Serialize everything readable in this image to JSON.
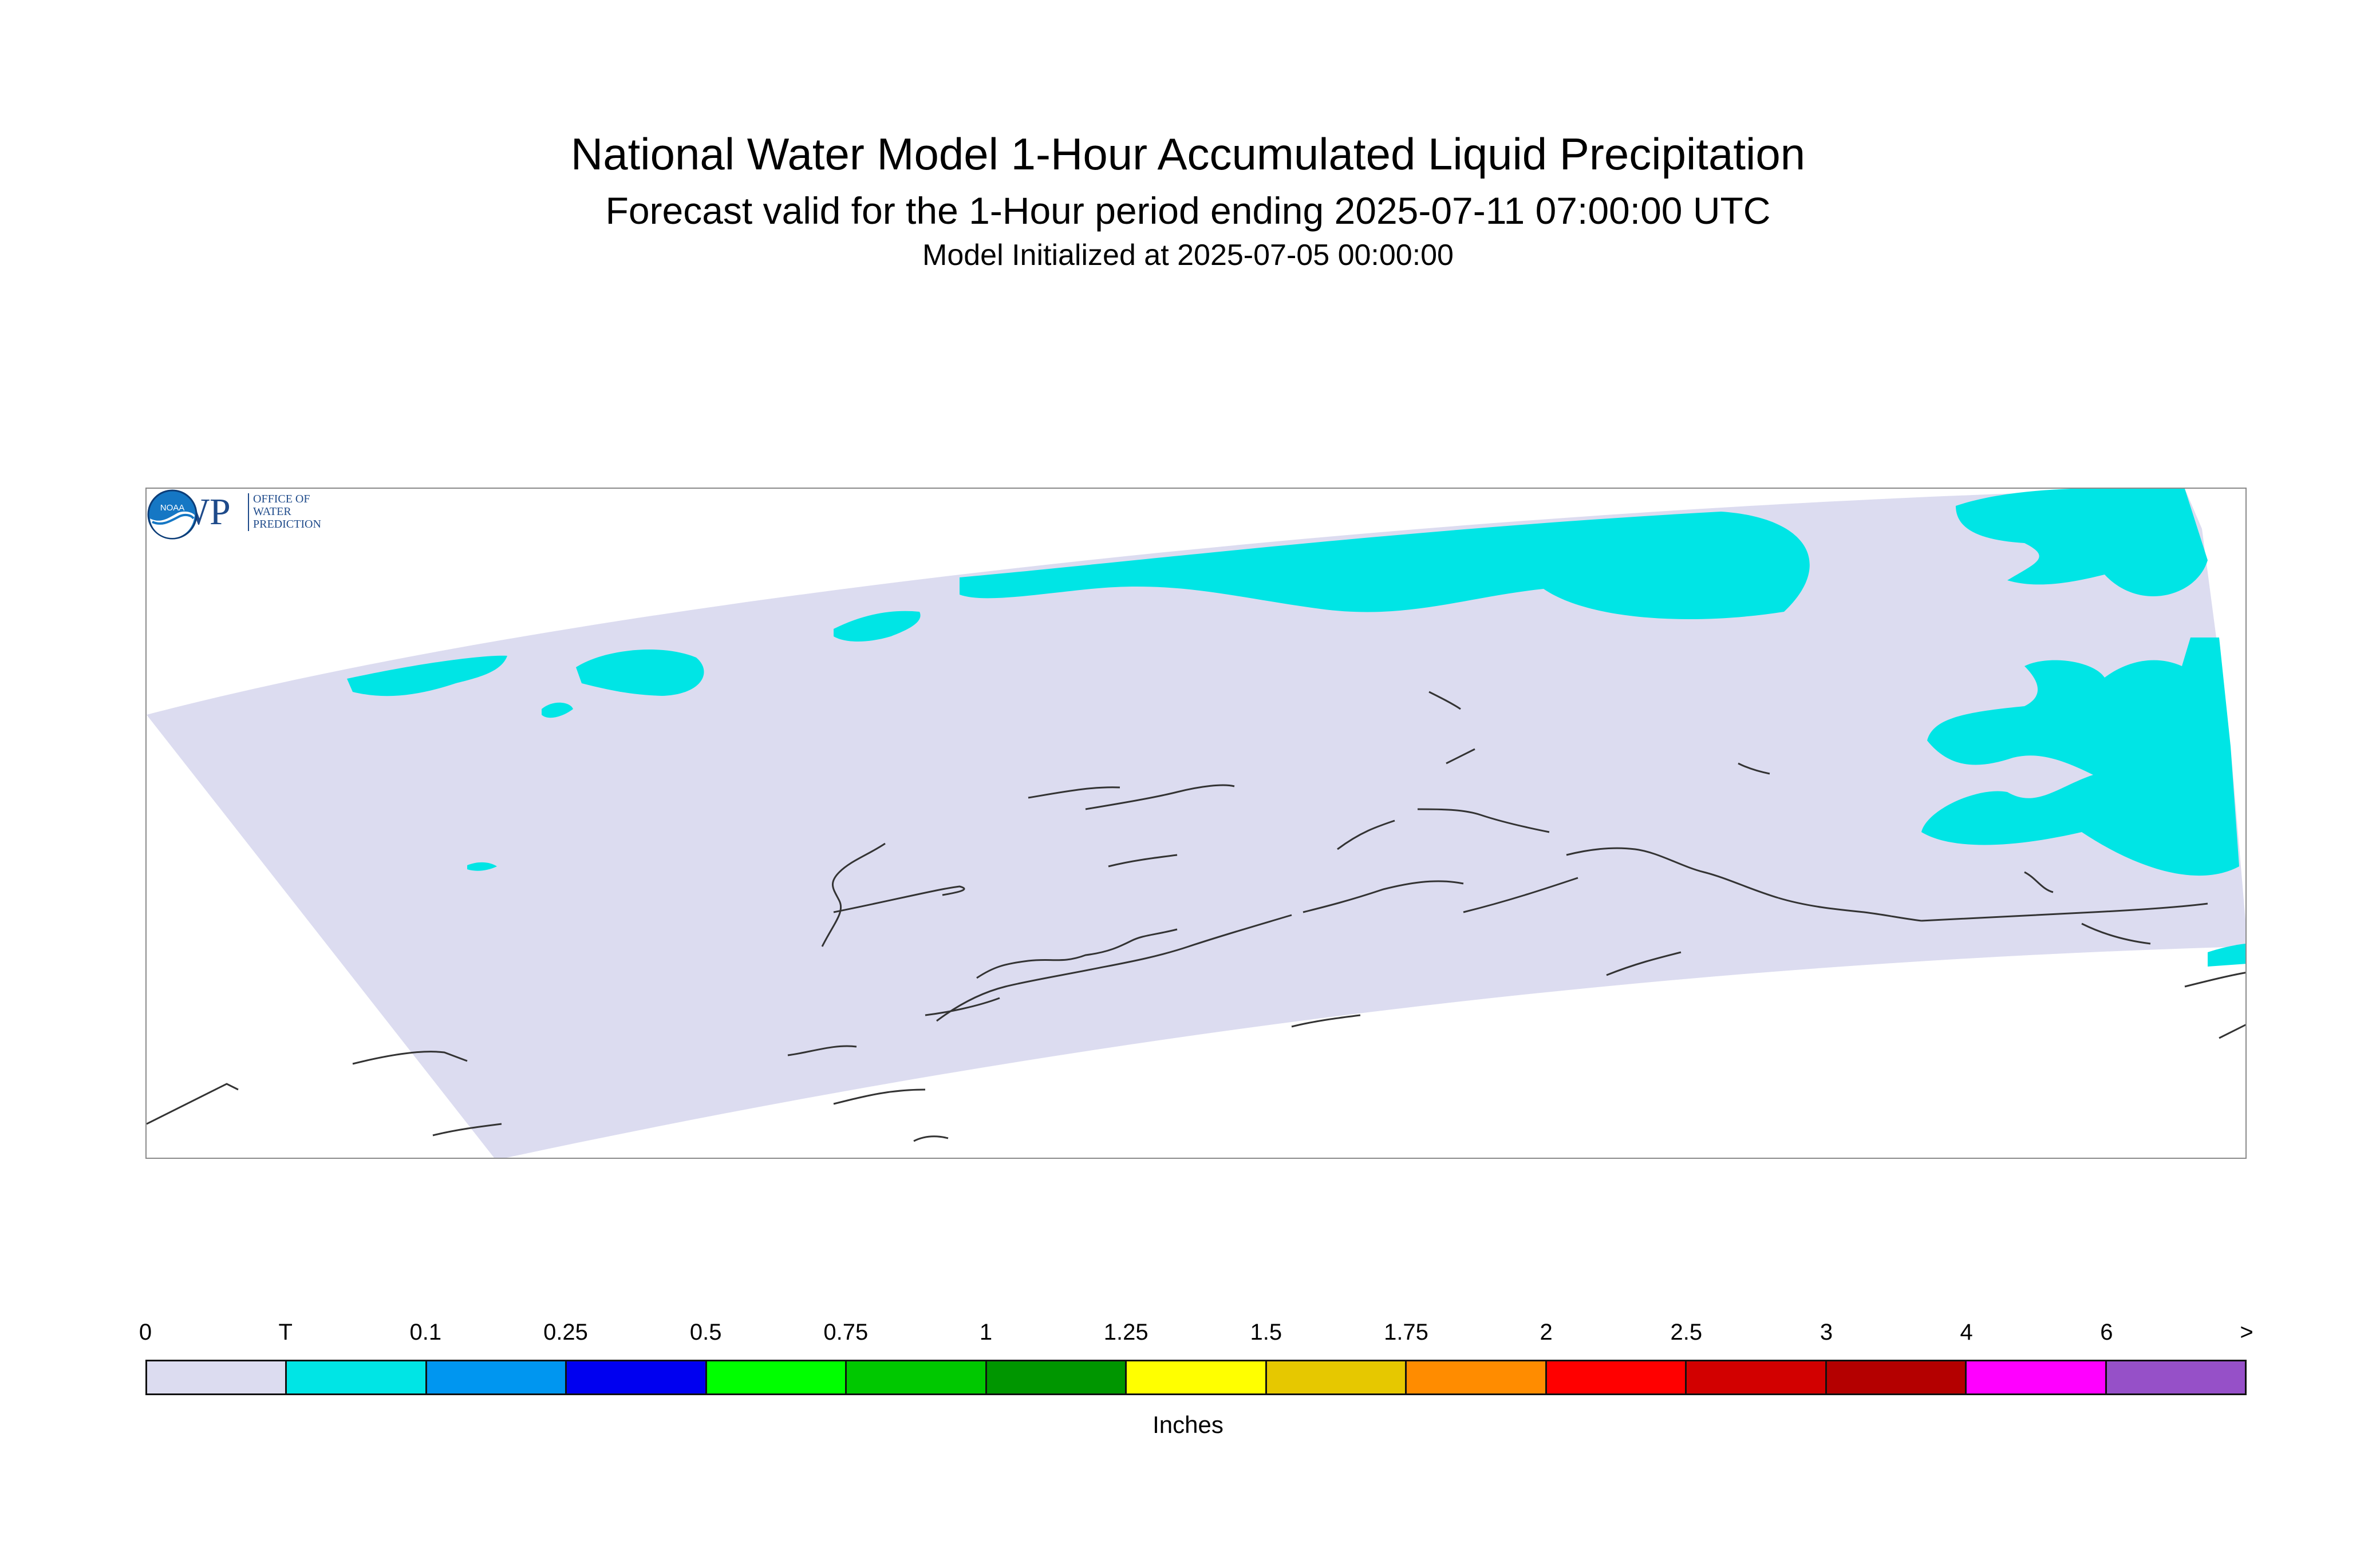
{
  "header": {
    "title": "National Water Model 1-Hour Accumulated Liquid Precipitation",
    "subtitle": "Forecast valid for the 1-Hour period ending 2025-07-11 07:00:00 UTC",
    "initialized": "Model Initialized at 2025-07-05 00:00:00"
  },
  "logos": {
    "owp_mark": "OWP",
    "owp_lines": [
      "OFFICE OF",
      "WATER",
      "PREDICTION"
    ],
    "noaa_mark": "NOAA"
  },
  "map": {
    "domain_color": "#dcdcf0",
    "coast_color": "#333333",
    "precip_color": "#00e5e5"
  },
  "legend": {
    "labels": [
      "0",
      "T",
      "0.1",
      "0.25",
      "0.5",
      "0.75",
      "1",
      "1.25",
      "1.5",
      "1.75",
      "2",
      "2.5",
      "3",
      "4",
      "6",
      ">"
    ],
    "colors": [
      "#dcdcf0",
      "#00e5e5",
      "#0096f0",
      "#0000f0",
      "#00ff00",
      "#00c800",
      "#009600",
      "#ffff00",
      "#e6c800",
      "#ff8c00",
      "#ff0000",
      "#d20000",
      "#b40000",
      "#ff00ff",
      "#9650c8"
    ],
    "units": "Inches"
  }
}
